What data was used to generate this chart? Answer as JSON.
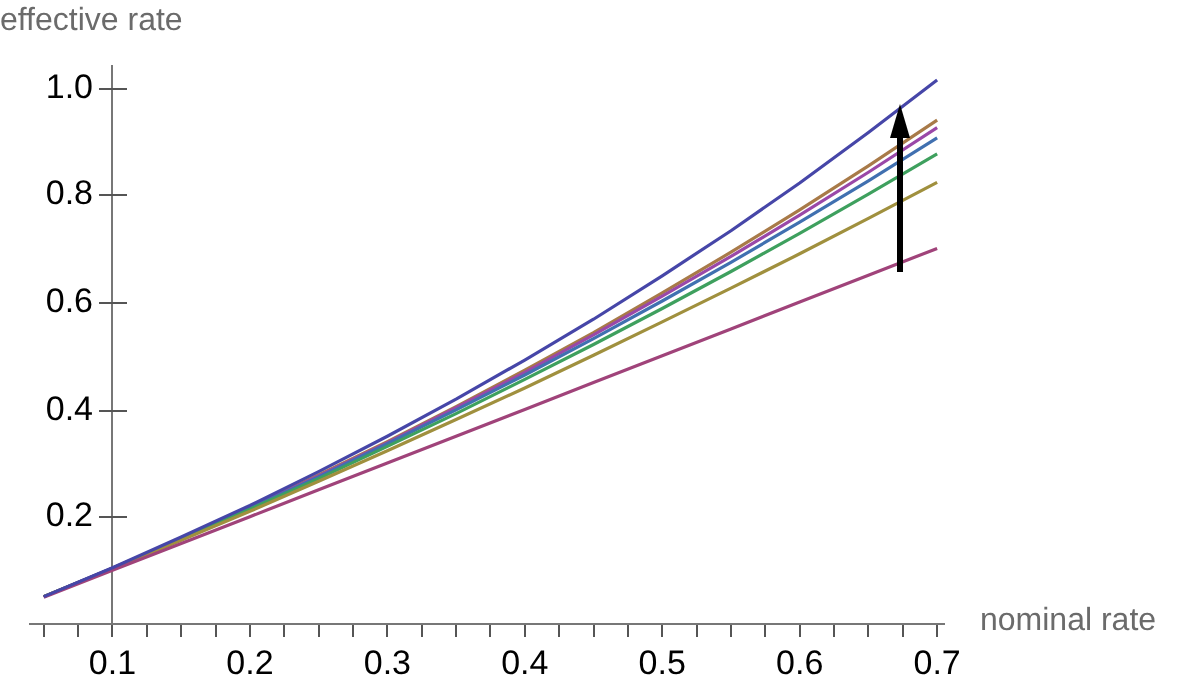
{
  "chart_data": {
    "type": "line",
    "xlabel": "nominal rate",
    "ylabel": "effective rate",
    "x": [
      0.05,
      0.1,
      0.15,
      0.2,
      0.25,
      0.3,
      0.35,
      0.4,
      0.45,
      0.5,
      0.55,
      0.6,
      0.65,
      0.7
    ],
    "series": [
      {
        "color": "#4646a8",
        "values": [
          0.051,
          0.105,
          0.162,
          0.221,
          0.284,
          0.35,
          0.419,
          0.492,
          0.568,
          0.649,
          0.733,
          0.822,
          0.916,
          1.014
        ]
      },
      {
        "color": "#a0437a",
        "values": [
          0.05,
          0.1,
          0.15,
          0.2,
          0.25,
          0.3,
          0.35,
          0.4,
          0.45,
          0.5,
          0.55,
          0.6,
          0.65,
          0.7
        ]
      },
      {
        "color": "#a0903e",
        "values": [
          0.051,
          0.103,
          0.156,
          0.21,
          0.266,
          0.323,
          0.381,
          0.44,
          0.501,
          0.563,
          0.626,
          0.69,
          0.756,
          0.823
        ]
      },
      {
        "color": "#3ea05e",
        "values": [
          0.051,
          0.103,
          0.158,
          0.214,
          0.271,
          0.331,
          0.392,
          0.456,
          0.521,
          0.588,
          0.657,
          0.728,
          0.801,
          0.876
        ]
      },
      {
        "color": "#4070b0",
        "values": [
          0.051,
          0.104,
          0.159,
          0.216,
          0.274,
          0.336,
          0.399,
          0.464,
          0.532,
          0.602,
          0.674,
          0.749,
          0.826,
          0.906
        ]
      },
      {
        "color": "#9a48a8",
        "values": [
          0.051,
          0.104,
          0.159,
          0.217,
          0.276,
          0.338,
          0.403,
          0.469,
          0.539,
          0.611,
          0.685,
          0.762,
          0.842,
          0.925
        ]
      },
      {
        "color": "#a87a48",
        "values": [
          0.051,
          0.104,
          0.16,
          0.217,
          0.278,
          0.34,
          0.405,
          0.473,
          0.543,
          0.617,
          0.693,
          0.772,
          0.854,
          0.939
        ]
      }
    ],
    "xlim": [
      0.04,
      0.705
    ],
    "ylim": [
      0,
      1.04
    ],
    "xticks": [
      {
        "value": 0.05,
        "label": null
      },
      {
        "value": 0.075,
        "label": null
      },
      0.1,
      {
        "value": 0.125,
        "label": null
      },
      {
        "value": 0.15,
        "label": null
      },
      {
        "value": 0.175,
        "label": null
      },
      0.2,
      {
        "value": 0.225,
        "label": null
      },
      {
        "value": 0.25,
        "label": null
      },
      {
        "value": 0.275,
        "label": null
      },
      0.3,
      {
        "value": 0.325,
        "label": null
      },
      {
        "value": 0.35,
        "label": null
      },
      {
        "value": 0.375,
        "label": null
      },
      0.4,
      {
        "value": 0.425,
        "label": null
      },
      {
        "value": 0.45,
        "label": null
      },
      {
        "value": 0.475,
        "label": null
      },
      0.5,
      {
        "value": 0.525,
        "label": null
      },
      {
        "value": 0.55,
        "label": null
      },
      {
        "value": 0.575,
        "label": null
      },
      0.6,
      {
        "value": 0.625,
        "label": null
      },
      {
        "value": 0.65,
        "label": null
      },
      {
        "value": 0.675,
        "label": null
      },
      0.7
    ],
    "yticks": [
      0.2,
      0.4,
      0.6,
      0.8,
      {
        "value": 1,
        "label": "1.0"
      }
    ],
    "grid": false,
    "legend": false,
    "marker": "none",
    "line_style": "solid"
  }
}
